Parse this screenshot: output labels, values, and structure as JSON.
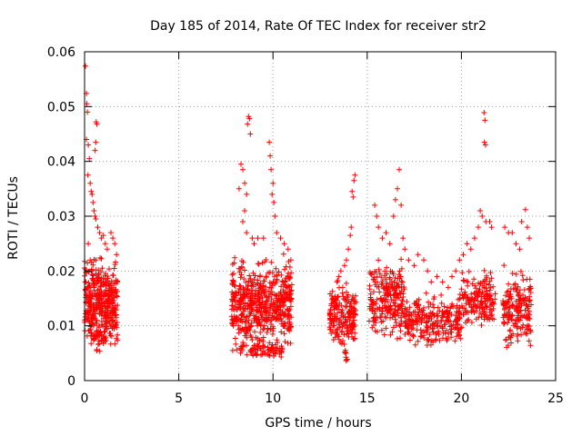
{
  "chart_data": {
    "type": "scatter",
    "title": "Day 185 of 2014, Rate Of TEC Index for receiver str2",
    "xlabel": "GPS time / hours",
    "ylabel": "ROTI / TECUs",
    "xlim": [
      0,
      25
    ],
    "ylim": [
      0,
      0.06
    ],
    "x_ticks": [
      0,
      5,
      10,
      15,
      20,
      25
    ],
    "x_tick_labels": [
      "0",
      "5",
      "10",
      "15",
      "20",
      "25"
    ],
    "y_ticks": [
      0,
      0.01,
      0.02,
      0.03,
      0.04,
      0.05,
      0.06
    ],
    "y_tick_labels": [
      "0",
      "0.01",
      "0.02",
      "0.03",
      "0.04",
      "0.05",
      "0.06"
    ],
    "grid": true,
    "marker": "+",
    "series": [
      {
        "name": "ROTI",
        "color": "#ff0000",
        "points": [
          [
            0.05,
            0.0574
          ],
          [
            0.1,
            0.0524
          ],
          [
            0.12,
            0.0505
          ],
          [
            0.15,
            0.049
          ],
          [
            0.1,
            0.044
          ],
          [
            0.2,
            0.043
          ],
          [
            0.25,
            0.0405
          ],
          [
            0.18,
            0.0375
          ],
          [
            0.3,
            0.036
          ],
          [
            0.35,
            0.0345
          ],
          [
            0.4,
            0.034
          ],
          [
            0.45,
            0.0325
          ],
          [
            0.5,
            0.031
          ],
          [
            0.55,
            0.03
          ],
          [
            0.6,
            0.0295
          ],
          [
            0.62,
            0.0472
          ],
          [
            0.65,
            0.0468
          ],
          [
            0.6,
            0.0435
          ],
          [
            0.55,
            0.042
          ],
          [
            0.7,
            0.028
          ],
          [
            0.8,
            0.027
          ],
          [
            0.9,
            0.026
          ],
          [
            1.0,
            0.0265
          ],
          [
            1.1,
            0.025
          ],
          [
            1.2,
            0.024
          ],
          [
            1.4,
            0.027
          ],
          [
            1.5,
            0.026
          ],
          [
            1.6,
            0.025
          ],
          [
            1.7,
            0.023
          ],
          [
            0.2,
            0.025
          ],
          [
            0.3,
            0.022
          ],
          [
            8.3,
            0.0395
          ],
          [
            8.4,
            0.0385
          ],
          [
            8.5,
            0.036
          ],
          [
            8.2,
            0.035
          ],
          [
            8.6,
            0.034
          ],
          [
            8.7,
            0.0482
          ],
          [
            8.75,
            0.0478
          ],
          [
            8.65,
            0.0468
          ],
          [
            8.8,
            0.045
          ],
          [
            8.5,
            0.031
          ],
          [
            8.4,
            0.029
          ],
          [
            8.6,
            0.027
          ],
          [
            8.9,
            0.026
          ],
          [
            9.0,
            0.025
          ],
          [
            9.2,
            0.026
          ],
          [
            9.8,
            0.0435
          ],
          [
            9.85,
            0.041
          ],
          [
            9.9,
            0.0385
          ],
          [
            10.0,
            0.036
          ],
          [
            9.95,
            0.034
          ],
          [
            10.05,
            0.0325
          ],
          [
            10.1,
            0.03
          ],
          [
            10.2,
            0.027
          ],
          [
            9.5,
            0.026
          ],
          [
            10.4,
            0.026
          ],
          [
            10.6,
            0.025
          ],
          [
            10.8,
            0.024
          ],
          [
            13.4,
            0.018
          ],
          [
            13.5,
            0.019
          ],
          [
            13.6,
            0.02
          ],
          [
            13.8,
            0.021
          ],
          [
            13.9,
            0.022
          ],
          [
            14.0,
            0.024
          ],
          [
            14.1,
            0.0265
          ],
          [
            14.2,
            0.0345
          ],
          [
            14.25,
            0.0335
          ],
          [
            14.3,
            0.0365
          ],
          [
            14.35,
            0.0375
          ],
          [
            14.15,
            0.028
          ],
          [
            13.7,
            0.017
          ],
          [
            15.4,
            0.032
          ],
          [
            15.5,
            0.03
          ],
          [
            15.6,
            0.028
          ],
          [
            15.8,
            0.026
          ],
          [
            16.0,
            0.027
          ],
          [
            16.2,
            0.025
          ],
          [
            16.4,
            0.03
          ],
          [
            16.5,
            0.033
          ],
          [
            16.6,
            0.035
          ],
          [
            16.7,
            0.0385
          ],
          [
            16.8,
            0.032
          ],
          [
            16.9,
            0.026
          ],
          [
            17.0,
            0.024
          ],
          [
            17.2,
            0.022
          ],
          [
            17.5,
            0.021
          ],
          [
            17.7,
            0.023
          ],
          [
            18.0,
            0.022
          ],
          [
            18.2,
            0.02
          ],
          [
            18.4,
            0.018
          ],
          [
            18.7,
            0.019
          ],
          [
            19.0,
            0.018
          ],
          [
            19.3,
            0.017
          ],
          [
            19.5,
            0.019
          ],
          [
            19.7,
            0.02
          ],
          [
            19.9,
            0.022
          ],
          [
            20.1,
            0.023
          ],
          [
            20.3,
            0.025
          ],
          [
            20.5,
            0.024
          ],
          [
            20.7,
            0.026
          ],
          [
            20.9,
            0.028
          ],
          [
            21.0,
            0.031
          ],
          [
            21.1,
            0.03
          ],
          [
            21.2,
            0.0489
          ],
          [
            21.25,
            0.0475
          ],
          [
            21.22,
            0.0435
          ],
          [
            21.28,
            0.043
          ],
          [
            21.3,
            0.029
          ],
          [
            21.5,
            0.029
          ],
          [
            21.6,
            0.028
          ],
          [
            22.3,
            0.028
          ],
          [
            22.5,
            0.027
          ],
          [
            22.7,
            0.027
          ],
          [
            22.9,
            0.025
          ],
          [
            23.1,
            0.024
          ],
          [
            23.2,
            0.029
          ],
          [
            23.4,
            0.0312
          ],
          [
            23.5,
            0.028
          ],
          [
            23.6,
            0.026
          ]
        ]
      }
    ],
    "dense_bands": [
      {
        "x_start": 0.0,
        "x_end": 1.75,
        "y_min": 0.005,
        "y_max": 0.024,
        "count": 380
      },
      {
        "x_start": 0.3,
        "x_end": 1.1,
        "y_min": 0.004,
        "y_max": 0.012,
        "count": 40
      },
      {
        "x_start": 7.8,
        "x_end": 11.0,
        "y_min": 0.004,
        "y_max": 0.024,
        "count": 560
      },
      {
        "x_start": 8.0,
        "x_end": 10.5,
        "y_min": 0.0035,
        "y_max": 0.0075,
        "count": 70
      },
      {
        "x_start": 13.0,
        "x_end": 14.4,
        "y_min": 0.005,
        "y_max": 0.019,
        "count": 190
      },
      {
        "x_start": 13.8,
        "x_end": 14.0,
        "y_min": 0.003,
        "y_max": 0.006,
        "count": 8
      },
      {
        "x_start": 15.1,
        "x_end": 17.0,
        "y_min": 0.006,
        "y_max": 0.024,
        "count": 230
      },
      {
        "x_start": 17.0,
        "x_end": 20.0,
        "y_min": 0.005,
        "y_max": 0.017,
        "count": 260
      },
      {
        "x_start": 20.0,
        "x_end": 21.8,
        "y_min": 0.008,
        "y_max": 0.022,
        "count": 160
      },
      {
        "x_start": 22.2,
        "x_end": 23.7,
        "y_min": 0.004,
        "y_max": 0.022,
        "count": 180
      }
    ]
  }
}
